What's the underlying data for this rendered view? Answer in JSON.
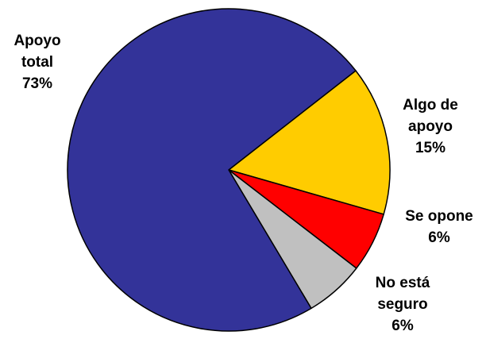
{
  "chart_data": {
    "type": "pie",
    "title": "",
    "slices": [
      {
        "label_lines": [
          "Apoyo",
          "total"
        ],
        "value": 73,
        "value_text": "73%",
        "color": "#333399"
      },
      {
        "label_lines": [
          "Algo de",
          "apoyo"
        ],
        "value": 15,
        "value_text": "15%",
        "color": "#FFCC00"
      },
      {
        "label_lines": [
          "Se opone"
        ],
        "value": 6,
        "value_text": "6%",
        "color": "#FF0000"
      },
      {
        "label_lines": [
          "No está",
          "seguro"
        ],
        "value": 6,
        "value_text": "6%",
        "color": "#C0C0C0"
      }
    ],
    "legend": "none"
  }
}
